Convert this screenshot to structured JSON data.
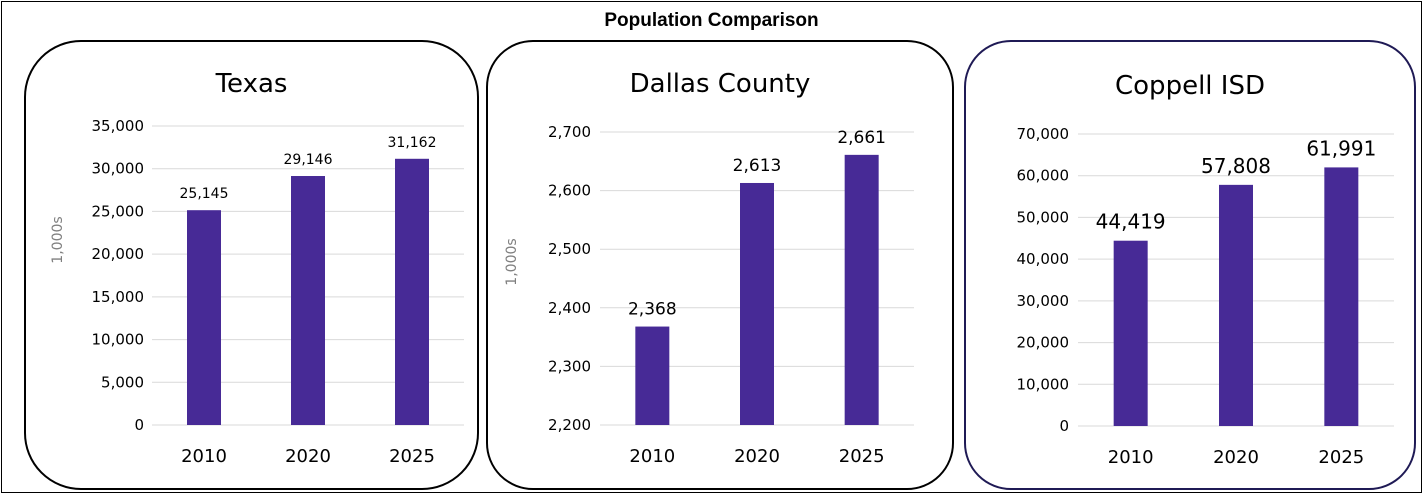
{
  "title": "Population Comparison",
  "colors": {
    "bar": "#472a96",
    "grid": "#d9d9d9",
    "border": "#000000",
    "border_alt": "#1f1a55"
  },
  "chart_data": [
    {
      "type": "bar",
      "title": "Texas",
      "ylabel": "1,000s",
      "xlabel": "",
      "categories": [
        "2010",
        "2020",
        "2025"
      ],
      "values": [
        25145,
        29146,
        31162
      ],
      "value_labels": [
        "25,145",
        "29,146",
        "31,162"
      ],
      "ylim": [
        0,
        35000
      ],
      "yticks": [
        "0",
        "5,000",
        "10,000",
        "15,000",
        "20,000",
        "25,000",
        "30,000",
        "35,000"
      ],
      "grid": true,
      "legend": "none"
    },
    {
      "type": "bar",
      "title": "Dallas County",
      "ylabel": "1,000s",
      "xlabel": "",
      "categories": [
        "2010",
        "2020",
        "2025"
      ],
      "values": [
        2368,
        2613,
        2661
      ],
      "value_labels": [
        "2,368",
        "2,613",
        "2,661"
      ],
      "ylim": [
        2200,
        2700
      ],
      "yticks": [
        "2,200",
        "2,300",
        "2,400",
        "2,500",
        "2,600",
        "2,700"
      ],
      "grid": true,
      "legend": "none"
    },
    {
      "type": "bar",
      "title": "Coppell ISD",
      "ylabel": "",
      "xlabel": "",
      "categories": [
        "2010",
        "2020",
        "2025"
      ],
      "values": [
        44419,
        57808,
        61991
      ],
      "value_labels": [
        "44,419",
        "57,808",
        "61,991"
      ],
      "ylim": [
        0,
        70000
      ],
      "yticks": [
        "0",
        "10,000",
        "20,000",
        "30,000",
        "40,000",
        "50,000",
        "60,000",
        "70,000"
      ],
      "grid": true,
      "legend": "none"
    }
  ]
}
